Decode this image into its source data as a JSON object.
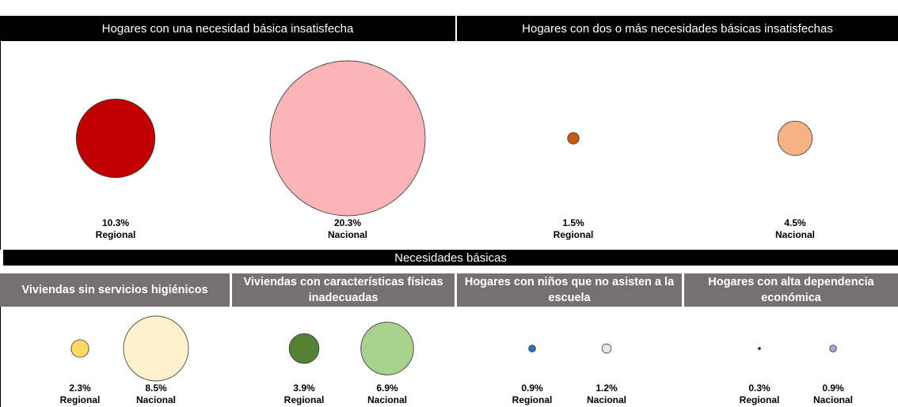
{
  "top_groups": [
    {
      "title": "Hogares con una necesidad básica insatisfecha",
      "items": [
        {
          "value": 10.3,
          "value_label": "10.3%",
          "label": "Regional",
          "color": "#c00000"
        },
        {
          "value": 20.3,
          "value_label": "20.3%",
          "label": "Nacional",
          "color": "#f8b4b6"
        }
      ]
    },
    {
      "title": "Hogares con dos o más necesidades básicas insatisfechas",
      "items": [
        {
          "value": 1.5,
          "value_label": "1.5%",
          "label": "Regional",
          "color": "#c55a11"
        },
        {
          "value": 4.5,
          "value_label": "4.5%",
          "label": "Nacional",
          "color": "#f4b183"
        }
      ]
    }
  ],
  "section_title": "Necesidades básicas",
  "groups": [
    {
      "title": "Viviendas sin servicios higiénicos",
      "items": [
        {
          "value": 2.3,
          "value_label": "2.3%",
          "label": "Regional",
          "color": "#ffd966"
        },
        {
          "value": 8.5,
          "value_label": "8.5%",
          "label": "Nacional",
          "color": "#fff2cc"
        }
      ]
    },
    {
      "title": "Viviendas con características físicas inadecuadas",
      "items": [
        {
          "value": 3.9,
          "value_label": "3.9%",
          "label": "Regional",
          "color": "#548235"
        },
        {
          "value": 6.9,
          "value_label": "6.9%",
          "label": "Nacional",
          "color": "#a9d18e"
        }
      ]
    },
    {
      "title": "Hogares con niños que no asisten a la escuela",
      "items": [
        {
          "value": 0.9,
          "value_label": "0.9%",
          "label": "Regional",
          "color": "#2e75b6"
        },
        {
          "value": 1.2,
          "value_label": "1.2%",
          "label": "Nacional",
          "color": "#deebf7"
        }
      ]
    },
    {
      "title": "Hogares con alta dependencia económica",
      "items": [
        {
          "value": 0.3,
          "value_label": "0.3%",
          "label": "Regional",
          "color": "#000000"
        },
        {
          "value": 0.9,
          "value_label": "0.9%",
          "label": "Nacional",
          "color": "#b4a0d8"
        }
      ]
    }
  ]
}
